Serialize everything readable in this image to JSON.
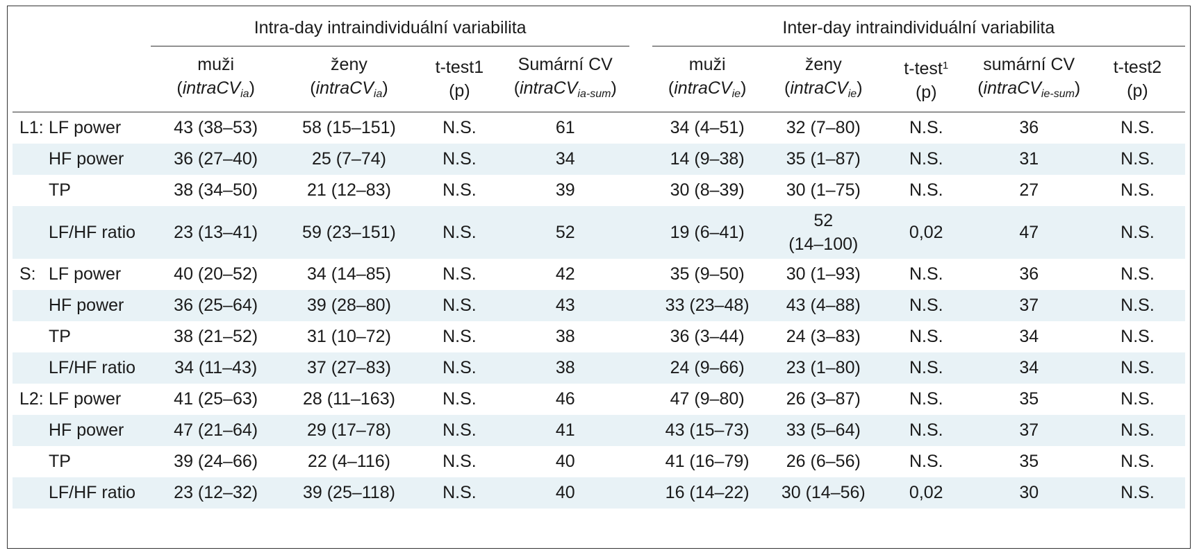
{
  "group_headers": {
    "intra": "Intra-day intraindividuální variabilita",
    "inter": "Inter-day intraindividuální variabilita"
  },
  "col_headers": [
    {
      "line1": "muži",
      "pre": "(",
      "main": "intraCV",
      "sub": "ia",
      "post": ")"
    },
    {
      "line1": "ženy",
      "pre": "(",
      "main": "intraCV",
      "sub": "ia",
      "post": ")"
    },
    {
      "line1": "t-test1",
      "line2": "(p)"
    },
    {
      "line1": "Sumární CV",
      "pre": "(",
      "main": "intraCV",
      "sub": "ia-sum",
      "post": ")"
    },
    {
      "line1": "muži",
      "pre": "(",
      "main": "intraCV",
      "sub": "ie",
      "post": ")"
    },
    {
      "line1": "ženy",
      "pre": "(",
      "main": "intraCV",
      "sub": "ie",
      "post": ")"
    },
    {
      "line1": "t-test",
      "sup": "1",
      "line2": "(p)"
    },
    {
      "line1": "sumární CV",
      "pre": "(",
      "main": "intraCV",
      "sub": "ie-sum",
      "post": ")"
    },
    {
      "line1": "t-test2",
      "line2": "(p)"
    }
  ],
  "rows": [
    {
      "group": "L1:",
      "label": "LF power",
      "cells": [
        "43 (38–53)",
        "58 (15–151)",
        "N.S.",
        "61",
        "34 (4–51)",
        "32 (7–80)",
        "N.S.",
        "36",
        "N.S."
      ]
    },
    {
      "group": "",
      "label": "HF power",
      "cells": [
        "36 (27–40)",
        "25 (7–74)",
        "N.S.",
        "34",
        "14 (9–38)",
        "35 (1–87)",
        "N.S.",
        "31",
        "N.S."
      ]
    },
    {
      "group": "",
      "label": "TP",
      "cells": [
        "38 (34–50)",
        "21 (12–83)",
        "N.S.",
        "39",
        "30 (8–39)",
        "30 (1–75)",
        "N.S.",
        "27",
        "N.S."
      ]
    },
    {
      "group": "",
      "label": "LF/HF ratio",
      "cells": [
        "23 (13–41)",
        "59 (23–151)",
        "N.S.",
        "52",
        "19 (6–41)",
        [
          "52",
          "(14–100)"
        ],
        "0,02",
        "47",
        "N.S."
      ]
    },
    {
      "group": "S:",
      "label": "LF power",
      "cells": [
        "40 (20–52)",
        "34 (14–85)",
        "N.S.",
        "42",
        "35 (9–50)",
        "30 (1–93)",
        "N.S.",
        "36",
        "N.S."
      ]
    },
    {
      "group": "",
      "label": "HF power",
      "cells": [
        "36 (25–64)",
        "39 (28–80)",
        "N.S.",
        "43",
        "33 (23–48)",
        "43 (4–88)",
        "N.S.",
        "37",
        "N.S."
      ]
    },
    {
      "group": "",
      "label": "TP",
      "cells": [
        "38 (21–52)",
        "31 (10–72)",
        "N.S.",
        "38",
        "36 (3–44)",
        "24 (3–83)",
        "N.S.",
        "34",
        "N.S."
      ]
    },
    {
      "group": "",
      "label": "LF/HF ratio",
      "cells": [
        "34 (11–43)",
        "37 (27–83)",
        "N.S.",
        "38",
        "24 (9–66)",
        "23 (1–80)",
        "N.S.",
        "34",
        "N.S."
      ]
    },
    {
      "group": "L2:",
      "label": "LF power",
      "cells": [
        "41 (25–63)",
        "28 (11–163)",
        "N.S.",
        "46",
        "47 (9–80)",
        "26 (3–87)",
        "N.S.",
        "35",
        "N.S."
      ]
    },
    {
      "group": "",
      "label": "HF power",
      "cells": [
        "47 (21–64)",
        "29 (17–78)",
        "N.S.",
        "41",
        "43 (15–73)",
        "33 (5–64)",
        "N.S.",
        "37",
        "N.S."
      ]
    },
    {
      "group": "",
      "label": "TP",
      "cells": [
        "39 (24–66)",
        "22 (4–116)",
        "N.S.",
        "40",
        "41 (16–79)",
        "26 (6–56)",
        "N.S.",
        "35",
        "N.S."
      ]
    },
    {
      "group": "",
      "label": "LF/HF ratio",
      "cells": [
        "23 (12–32)",
        "39 (25–118)",
        "N.S.",
        "40",
        "16 (14–22)",
        "30 (14–56)",
        "0,02",
        "30",
        "N.S."
      ]
    }
  ]
}
